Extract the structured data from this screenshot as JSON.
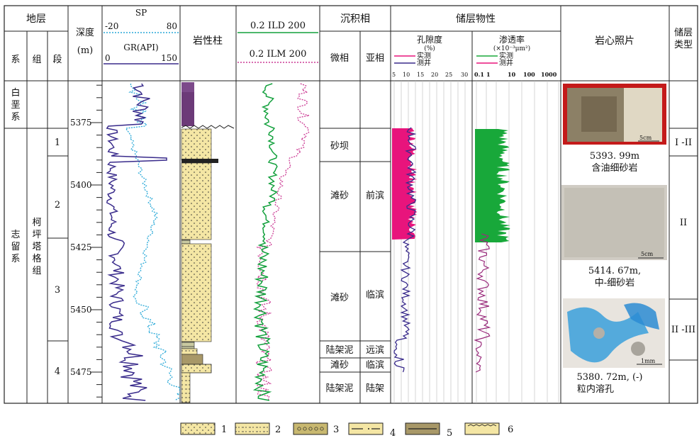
{
  "header": {
    "stratum": "地层",
    "system": "系",
    "formation": "组",
    "member": "段",
    "depth_label": "深度",
    "depth_unit": "(m)",
    "sp_label": "SP",
    "sp_min": "-20",
    "sp_max": "80",
    "gr_label": "GR(API)",
    "gr_min": "0",
    "gr_max": "150",
    "lithology_column": "岩性柱",
    "ild_label": "0.2  ILD 200",
    "ilm_label": "0.2  ILM 200",
    "facies": "沉积相",
    "microfacies": "微相",
    "subfacies": "亚相",
    "reservoir_properties": "储层物性",
    "porosity": "孔隙度",
    "porosity_unit": "(%)",
    "permeability": "渗透率",
    "permeability_unit": "(×10⁻³μm²)",
    "measured": "实测",
    "logged": "测井",
    "porosity_ticks": [
      "5",
      "10",
      "15",
      "20",
      "25",
      "30"
    ],
    "perm_ticks": [
      "0.1",
      "1",
      "10",
      "100",
      "1000"
    ],
    "core_photos": "岩心照片",
    "reservoir_type": "储层类型"
  },
  "systems": [
    {
      "name": "白垩系"
    },
    {
      "name": "志留系"
    }
  ],
  "formation_name": "柯坪塔格组",
  "members": [
    "1",
    "2",
    "3",
    "4"
  ],
  "depth_ticks": [
    "5375",
    "5400",
    "5425",
    "5450",
    "5475"
  ],
  "facies_rows": [
    {
      "micro": "砂坝",
      "sub": ""
    },
    {
      "micro": "滩砂",
      "sub": "前滨"
    },
    {
      "micro": "滩砂",
      "sub": "临滨"
    },
    {
      "micro": "陆架泥",
      "sub": "远滨"
    },
    {
      "micro": "滩砂",
      "sub": "临滨"
    },
    {
      "micro": "陆架泥",
      "sub": "陆架"
    }
  ],
  "photos": [
    {
      "caption1": "5393. 99m",
      "caption2": "含油细砂岩",
      "scale": "5cm"
    },
    {
      "caption1": "5414. 67m,",
      "caption2": "中-细砂岩",
      "scale": "5cm"
    },
    {
      "caption1": "5380. 72m, (-)",
      "caption2": "粒内溶孔",
      "scale": "1mm"
    }
  ],
  "reservoir_types": [
    "I -II",
    "II",
    "II -III"
  ],
  "legend": [
    "1",
    "2",
    "3",
    "4",
    "5",
    "6"
  ],
  "colors": {
    "sp": "#2aa9d8",
    "gr": "#3a2c8c",
    "ild": "#12a03c",
    "ilm": "#cc3c95",
    "porosity_measured": "#e8147c",
    "perm_measured": "#18a83a",
    "sand": "#f4e6a4",
    "mudstone": "#6c3a78"
  }
}
